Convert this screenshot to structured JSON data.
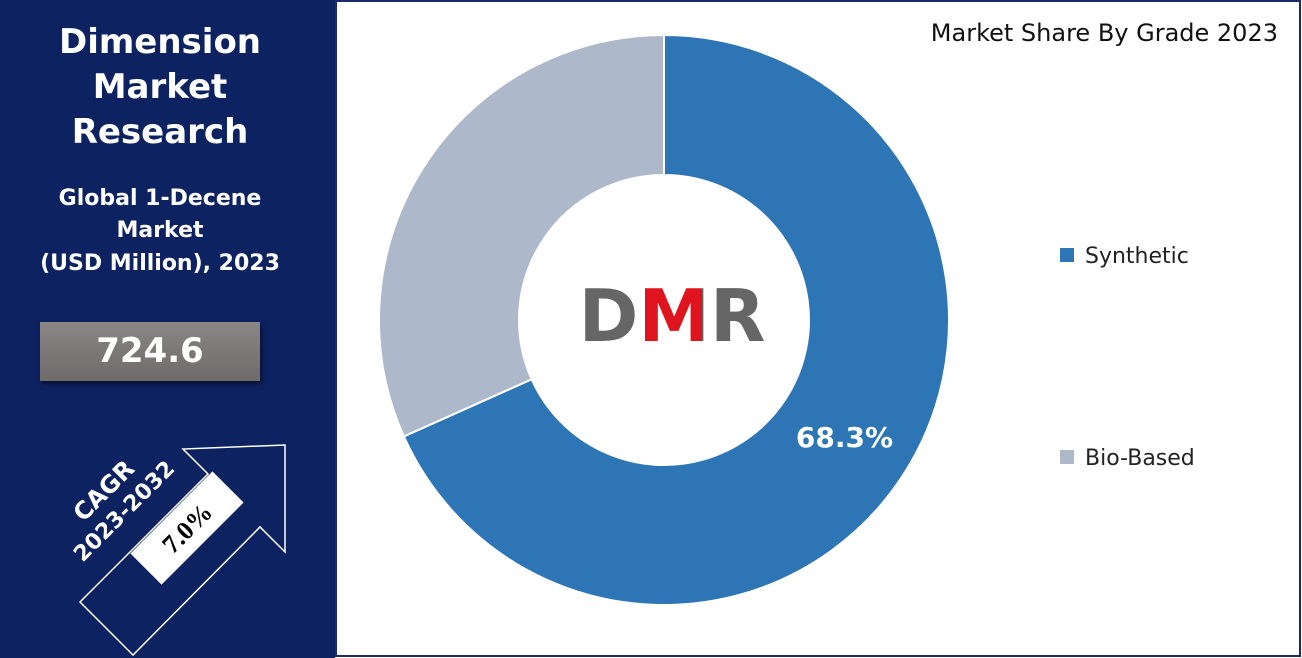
{
  "panel": {
    "title_lines": [
      "Dimension",
      "Market",
      "Research"
    ],
    "subtitle_lines": [
      "Global 1-Decene",
      "Market",
      "(USD Million), 2023"
    ],
    "value": "724.6",
    "cagr_label": "CAGR",
    "cagr_period": "2023-2032",
    "cagr_value": "7.0%"
  },
  "chart_data": {
    "type": "donut",
    "title": "Market Share By Grade 2023",
    "logo": "DMR",
    "categories": [
      "Synthetic",
      "Bio-Based"
    ],
    "values": [
      68.3,
      31.7
    ],
    "value_labels": [
      "68.3%",
      null
    ],
    "colors": [
      "#2e75b6",
      "#adb9ca"
    ],
    "legend": "right"
  }
}
